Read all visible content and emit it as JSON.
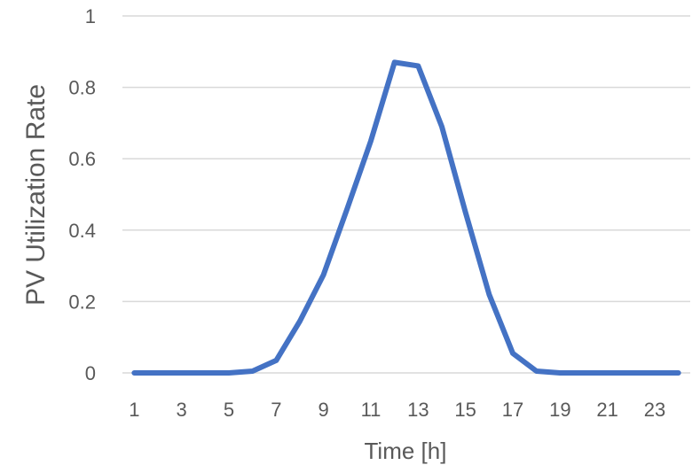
{
  "chart_data": {
    "type": "line",
    "title": "",
    "xlabel": "Time [h]",
    "ylabel": "PV Utilization Rate",
    "x": [
      1,
      2,
      3,
      4,
      5,
      6,
      7,
      8,
      9,
      10,
      11,
      12,
      13,
      14,
      15,
      16,
      17,
      18,
      19,
      20,
      21,
      22,
      23,
      24
    ],
    "x_tick_labels": [
      "1",
      "3",
      "5",
      "7",
      "9",
      "11",
      "13",
      "15",
      "17",
      "19",
      "21",
      "23"
    ],
    "y_tick_labels": [
      "0",
      "0.2",
      "0.4",
      "0.6",
      "0.8",
      "1"
    ],
    "ylim": [
      0,
      1
    ],
    "grid": true,
    "legend": "none",
    "series": [
      {
        "values": [
          0,
          0,
          0,
          0,
          0,
          0.005,
          0.035,
          0.145,
          0.275,
          0.46,
          0.65,
          0.87,
          0.86,
          0.69,
          0.45,
          0.22,
          0.055,
          0.005,
          0,
          0,
          0,
          0,
          0,
          0
        ],
        "color": "#4472C4"
      }
    ],
    "colors": {
      "line": "#4472C4",
      "grid": "#D9D9D9",
      "text": "#595959"
    }
  }
}
